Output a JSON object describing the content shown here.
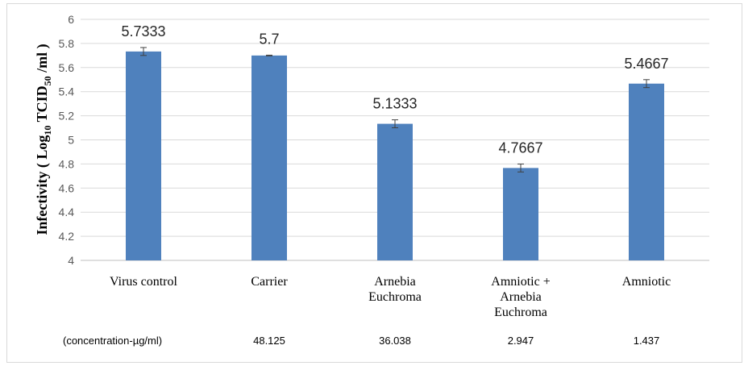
{
  "chart_data": {
    "type": "bar",
    "categories": [
      "Virus control",
      "Carrier",
      "Arnebia Euchroma",
      "Amniotic + Arnebia Euchroma",
      "Amniotic"
    ],
    "category_lines": [
      [
        "Virus control"
      ],
      [
        "Carrier"
      ],
      [
        "Arnebia",
        "Euchroma"
      ],
      [
        "Amniotic +",
        "Arnebia",
        "Euchroma"
      ],
      [
        "Amniotic"
      ]
    ],
    "values": [
      5.7333,
      5.7,
      5.1333,
      4.7667,
      5.4667
    ],
    "value_labels": [
      "5.7333",
      "5.7",
      "5.1333",
      "4.7667",
      "5.4667"
    ],
    "error": [
      0.033,
      0.003,
      0.033,
      0.033,
      0.033
    ],
    "ylabel": {
      "main": "Infectivity ( Log",
      "sub1": "10",
      "mid": " TCID",
      "sub2": "50",
      "tail": " /ml )"
    },
    "ylim": [
      4,
      6
    ],
    "ytick_step": 0.2,
    "ytick_labels": [
      "4",
      "4.2",
      "4.4",
      "4.6",
      "4.8",
      "5",
      "5.2",
      "5.4",
      "5.6",
      "5.8",
      "6"
    ],
    "grid": true,
    "bar_color": "#4f81bd",
    "concentration_label": "(concentration-µg/ml)",
    "concentrations": [
      "",
      "48.125",
      "36.038",
      "2.947",
      "1.437"
    ]
  }
}
